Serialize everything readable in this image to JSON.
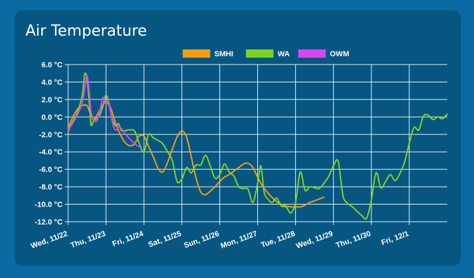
{
  "card": {
    "title": "Air Temperature"
  },
  "chart_data": {
    "type": "line",
    "title": "Air Temperature",
    "xlabel": "",
    "ylabel": "",
    "ylim": [
      -12,
      6
    ],
    "yticks": [
      6,
      4,
      2,
      0,
      -2,
      -4,
      -6,
      -8,
      -10,
      -12
    ],
    "ytick_labels": [
      "6.0 °C",
      "4.0 °C",
      "2.0 °C",
      "0.0 °C",
      "-2.0 °C",
      "-4.0 °C",
      "-6.0 °C",
      "-8.0 °C",
      "-10.0 °C",
      "-12.0 °C"
    ],
    "x_type": "date",
    "xlim": [
      "2023-11-22T00:00",
      "2023-12-02T00:00"
    ],
    "xticks": [
      "2023-11-22",
      "2023-11-23",
      "2023-11-24",
      "2023-11-25",
      "2023-11-26",
      "2023-11-27",
      "2023-11-28",
      "2023-11-29",
      "2023-11-30",
      "2023-12-01"
    ],
    "xtick_labels": [
      "Wed, 11/22",
      "Thu, 11/23",
      "Fri, 11/24",
      "Sat, 11/25",
      "Sun, 11/26",
      "Mon, 11/27",
      "Tue, 11/28",
      "Wed, 11/29",
      "Thu, 11/30",
      "Fri, 12/1"
    ],
    "grid": true,
    "legend_position": "top-center",
    "series": [
      {
        "name": "SMHI",
        "color": "#f39c12",
        "points": [
          [
            "2023-11-22T00:00",
            -1.3
          ],
          [
            "2023-11-22T03:00",
            0.0
          ],
          [
            "2023-11-22T06:00",
            0.9
          ],
          [
            "2023-11-22T09:00",
            1.3
          ],
          [
            "2023-11-22T12:00",
            1.3
          ],
          [
            "2023-11-22T14:00",
            0.4
          ],
          [
            "2023-11-22T16:00",
            -0.3
          ],
          [
            "2023-11-22T18:00",
            0.1
          ],
          [
            "2023-11-22T21:00",
            1.1
          ],
          [
            "2023-11-23T00:00",
            1.7
          ],
          [
            "2023-11-23T03:00",
            1.0
          ],
          [
            "2023-11-23T06:00",
            -0.7
          ],
          [
            "2023-11-23T09:00",
            -2.0
          ],
          [
            "2023-11-23T12:00",
            -2.9
          ],
          [
            "2023-11-23T15:00",
            -3.3
          ],
          [
            "2023-11-23T18:00",
            -3.1
          ],
          [
            "2023-11-23T21:00",
            -2.2
          ],
          [
            "2023-11-24T00:00",
            -2.2
          ],
          [
            "2023-11-24T03:00",
            -3.4
          ],
          [
            "2023-11-24T06:00",
            -4.6
          ],
          [
            "2023-11-24T09:00",
            -5.9
          ],
          [
            "2023-11-24T12:00",
            -6.3
          ],
          [
            "2023-11-24T15:00",
            -5.2
          ],
          [
            "2023-11-24T18:00",
            -3.7
          ],
          [
            "2023-11-24T21:00",
            -2.3
          ],
          [
            "2023-11-25T00:00",
            -1.6
          ],
          [
            "2023-11-25T03:00",
            -2.3
          ],
          [
            "2023-11-25T06:00",
            -4.6
          ],
          [
            "2023-11-25T09:00",
            -7.0
          ],
          [
            "2023-11-25T12:00",
            -8.6
          ],
          [
            "2023-11-25T15:00",
            -8.9
          ],
          [
            "2023-11-25T18:00",
            -8.5
          ],
          [
            "2023-11-25T21:00",
            -8.0
          ],
          [
            "2023-11-26T00:00",
            -7.4
          ],
          [
            "2023-11-26T03:00",
            -6.9
          ],
          [
            "2023-11-26T06:00",
            -6.6
          ],
          [
            "2023-11-26T09:00",
            -6.2
          ],
          [
            "2023-11-26T12:00",
            -5.8
          ],
          [
            "2023-11-26T15:00",
            -5.4
          ],
          [
            "2023-11-26T18:00",
            -5.3
          ],
          [
            "2023-11-26T21:00",
            -5.8
          ],
          [
            "2023-11-27T00:00",
            -6.9
          ],
          [
            "2023-11-27T03:00",
            -7.9
          ],
          [
            "2023-11-27T06:00",
            -8.6
          ],
          [
            "2023-11-27T09:00",
            -9.2
          ],
          [
            "2023-11-27T12:00",
            -9.7
          ],
          [
            "2023-11-27T15:00",
            -10.0
          ],
          [
            "2023-11-27T18:00",
            -10.2
          ],
          [
            "2023-11-27T21:00",
            -10.3
          ],
          [
            "2023-11-28T00:00",
            -10.3
          ],
          [
            "2023-11-28T03:00",
            -10.3
          ],
          [
            "2023-11-28T06:00",
            -10.1
          ],
          [
            "2023-11-28T09:00",
            -9.8
          ],
          [
            "2023-11-28T12:00",
            -9.6
          ],
          [
            "2023-11-28T15:00",
            -9.4
          ],
          [
            "2023-11-28T18:00",
            -9.2
          ]
        ]
      },
      {
        "name": "WA",
        "color": "#7ed321",
        "points": [
          [
            "2023-11-22T00:00",
            -1.7
          ],
          [
            "2023-11-22T03:00",
            -0.5
          ],
          [
            "2023-11-22T06:00",
            0.6
          ],
          [
            "2023-11-22T09:00",
            2.5
          ],
          [
            "2023-11-22T10:30",
            4.9
          ],
          [
            "2023-11-22T12:00",
            4.3
          ],
          [
            "2023-11-22T13:30",
            1.4
          ],
          [
            "2023-11-22T14:30",
            -0.9
          ],
          [
            "2023-11-22T16:00",
            -0.5
          ],
          [
            "2023-11-22T18:00",
            -0.2
          ],
          [
            "2023-11-22T20:00",
            0.2
          ],
          [
            "2023-11-22T22:00",
            1.2
          ],
          [
            "2023-11-23T00:00",
            2.5
          ],
          [
            "2023-11-23T02:00",
            1.4
          ],
          [
            "2023-11-23T04:00",
            -0.3
          ],
          [
            "2023-11-23T06:00",
            -1.0
          ],
          [
            "2023-11-23T08:00",
            -0.8
          ],
          [
            "2023-11-23T10:00",
            -1.6
          ],
          [
            "2023-11-23T14:00",
            -1.5
          ],
          [
            "2023-11-23T18:00",
            -1.6
          ],
          [
            "2023-11-23T21:00",
            -3.0
          ],
          [
            "2023-11-24T00:00",
            -4.0
          ],
          [
            "2023-11-24T03:00",
            -2.0
          ],
          [
            "2023-11-24T06:00",
            -2.4
          ],
          [
            "2023-11-24T09:00",
            -2.7
          ],
          [
            "2023-11-24T12:00",
            -3.1
          ],
          [
            "2023-11-24T15:00",
            -4.0
          ],
          [
            "2023-11-24T18:00",
            -5.0
          ],
          [
            "2023-11-24T21:00",
            -7.4
          ],
          [
            "2023-11-25T00:00",
            -7.1
          ],
          [
            "2023-11-25T03:00",
            -5.8
          ],
          [
            "2023-11-25T06:00",
            -6.4
          ],
          [
            "2023-11-25T09:00",
            -5.5
          ],
          [
            "2023-11-25T12:00",
            -5.5
          ],
          [
            "2023-11-25T15:00",
            -4.4
          ],
          [
            "2023-11-25T18:00",
            -5.6
          ],
          [
            "2023-11-25T21:00",
            -7.0
          ],
          [
            "2023-11-26T00:00",
            -6.6
          ],
          [
            "2023-11-26T03:00",
            -5.4
          ],
          [
            "2023-11-26T06:00",
            -6.3
          ],
          [
            "2023-11-26T09:00",
            -6.8
          ],
          [
            "2023-11-26T12:00",
            -8.0
          ],
          [
            "2023-11-26T15:00",
            -8.2
          ],
          [
            "2023-11-26T18:00",
            -8.3
          ],
          [
            "2023-11-26T21:00",
            -9.8
          ],
          [
            "2023-11-27T00:00",
            -7.6
          ],
          [
            "2023-11-27T02:00",
            -5.6
          ],
          [
            "2023-11-27T04:00",
            -8.5
          ],
          [
            "2023-11-27T06:00",
            -9.3
          ],
          [
            "2023-11-27T09:00",
            -9.8
          ],
          [
            "2023-11-27T12:00",
            -9.3
          ],
          [
            "2023-11-27T15:00",
            -10.2
          ],
          [
            "2023-11-27T18:00",
            -10.3
          ],
          [
            "2023-11-27T21:00",
            -11.0
          ],
          [
            "2023-11-28T00:00",
            -9.8
          ],
          [
            "2023-11-28T03:00",
            -6.3
          ],
          [
            "2023-11-28T06:00",
            -8.4
          ],
          [
            "2023-11-28T09:00",
            -8.0
          ],
          [
            "2023-11-28T12:00",
            -8.1
          ],
          [
            "2023-11-28T15:00",
            -8.2
          ],
          [
            "2023-11-28T18:00",
            -7.6
          ],
          [
            "2023-11-28T21:00",
            -6.8
          ],
          [
            "2023-11-29T00:00",
            -5.6
          ],
          [
            "2023-11-29T03:00",
            -5.1
          ],
          [
            "2023-11-29T06:00",
            -9.0
          ],
          [
            "2023-11-29T09:00",
            -9.9
          ],
          [
            "2023-11-29T12:00",
            -10.3
          ],
          [
            "2023-11-29T15:00",
            -10.8
          ],
          [
            "2023-11-29T18:00",
            -11.3
          ],
          [
            "2023-11-29T21:00",
            -11.6
          ],
          [
            "2023-11-30T00:00",
            -9.5
          ],
          [
            "2023-11-30T03:00",
            -6.4
          ],
          [
            "2023-11-30T06:00",
            -8.1
          ],
          [
            "2023-11-30T09:00",
            -7.4
          ],
          [
            "2023-11-30T12:00",
            -6.6
          ],
          [
            "2023-11-30T15:00",
            -7.3
          ],
          [
            "2023-11-30T18:00",
            -6.5
          ],
          [
            "2023-11-30T21:00",
            -5.2
          ],
          [
            "2023-12-01T00:00",
            -3.0
          ],
          [
            "2023-12-01T03:00",
            -1.2
          ],
          [
            "2023-12-01T06:00",
            -1.5
          ],
          [
            "2023-12-01T09:00",
            0.1
          ],
          [
            "2023-12-01T12:00",
            0.2
          ],
          [
            "2023-12-01T15:00",
            -0.3
          ],
          [
            "2023-12-01T18:00",
            0.0
          ],
          [
            "2023-12-01T21:00",
            -0.2
          ],
          [
            "2023-12-02T00:00",
            0.3
          ]
        ]
      },
      {
        "name": "OWM",
        "color": "#d946ef",
        "points": [
          [
            "2023-11-22T00:00",
            -1.5
          ],
          [
            "2023-11-22T03:00",
            -0.7
          ],
          [
            "2023-11-22T06:00",
            0.3
          ],
          [
            "2023-11-22T09:00",
            1.6
          ],
          [
            "2023-11-22T10:30",
            3.3
          ],
          [
            "2023-11-22T12:00",
            4.8
          ],
          [
            "2023-11-22T13:30",
            2.6
          ],
          [
            "2023-11-22T14:30",
            0.6
          ],
          [
            "2023-11-22T16:00",
            -0.2
          ],
          [
            "2023-11-22T18:00",
            -0.5
          ],
          [
            "2023-11-22T20:00",
            0.6
          ],
          [
            "2023-11-22T22:00",
            2.2
          ],
          [
            "2023-11-23T00:00",
            1.5
          ],
          [
            "2023-11-23T02:00",
            1.6
          ],
          [
            "2023-11-23T04:00",
            -0.6
          ],
          [
            "2023-11-23T06:00",
            -1.5
          ],
          [
            "2023-11-23T08:00",
            -1.1
          ],
          [
            "2023-11-23T10:00",
            -1.4
          ],
          [
            "2023-11-23T13:00",
            -2.1
          ],
          [
            "2023-11-23T16:00",
            -2.7
          ],
          [
            "2023-11-23T19:00",
            -3.2
          ],
          [
            "2023-11-23T22:00",
            -3.5
          ]
        ]
      }
    ]
  }
}
